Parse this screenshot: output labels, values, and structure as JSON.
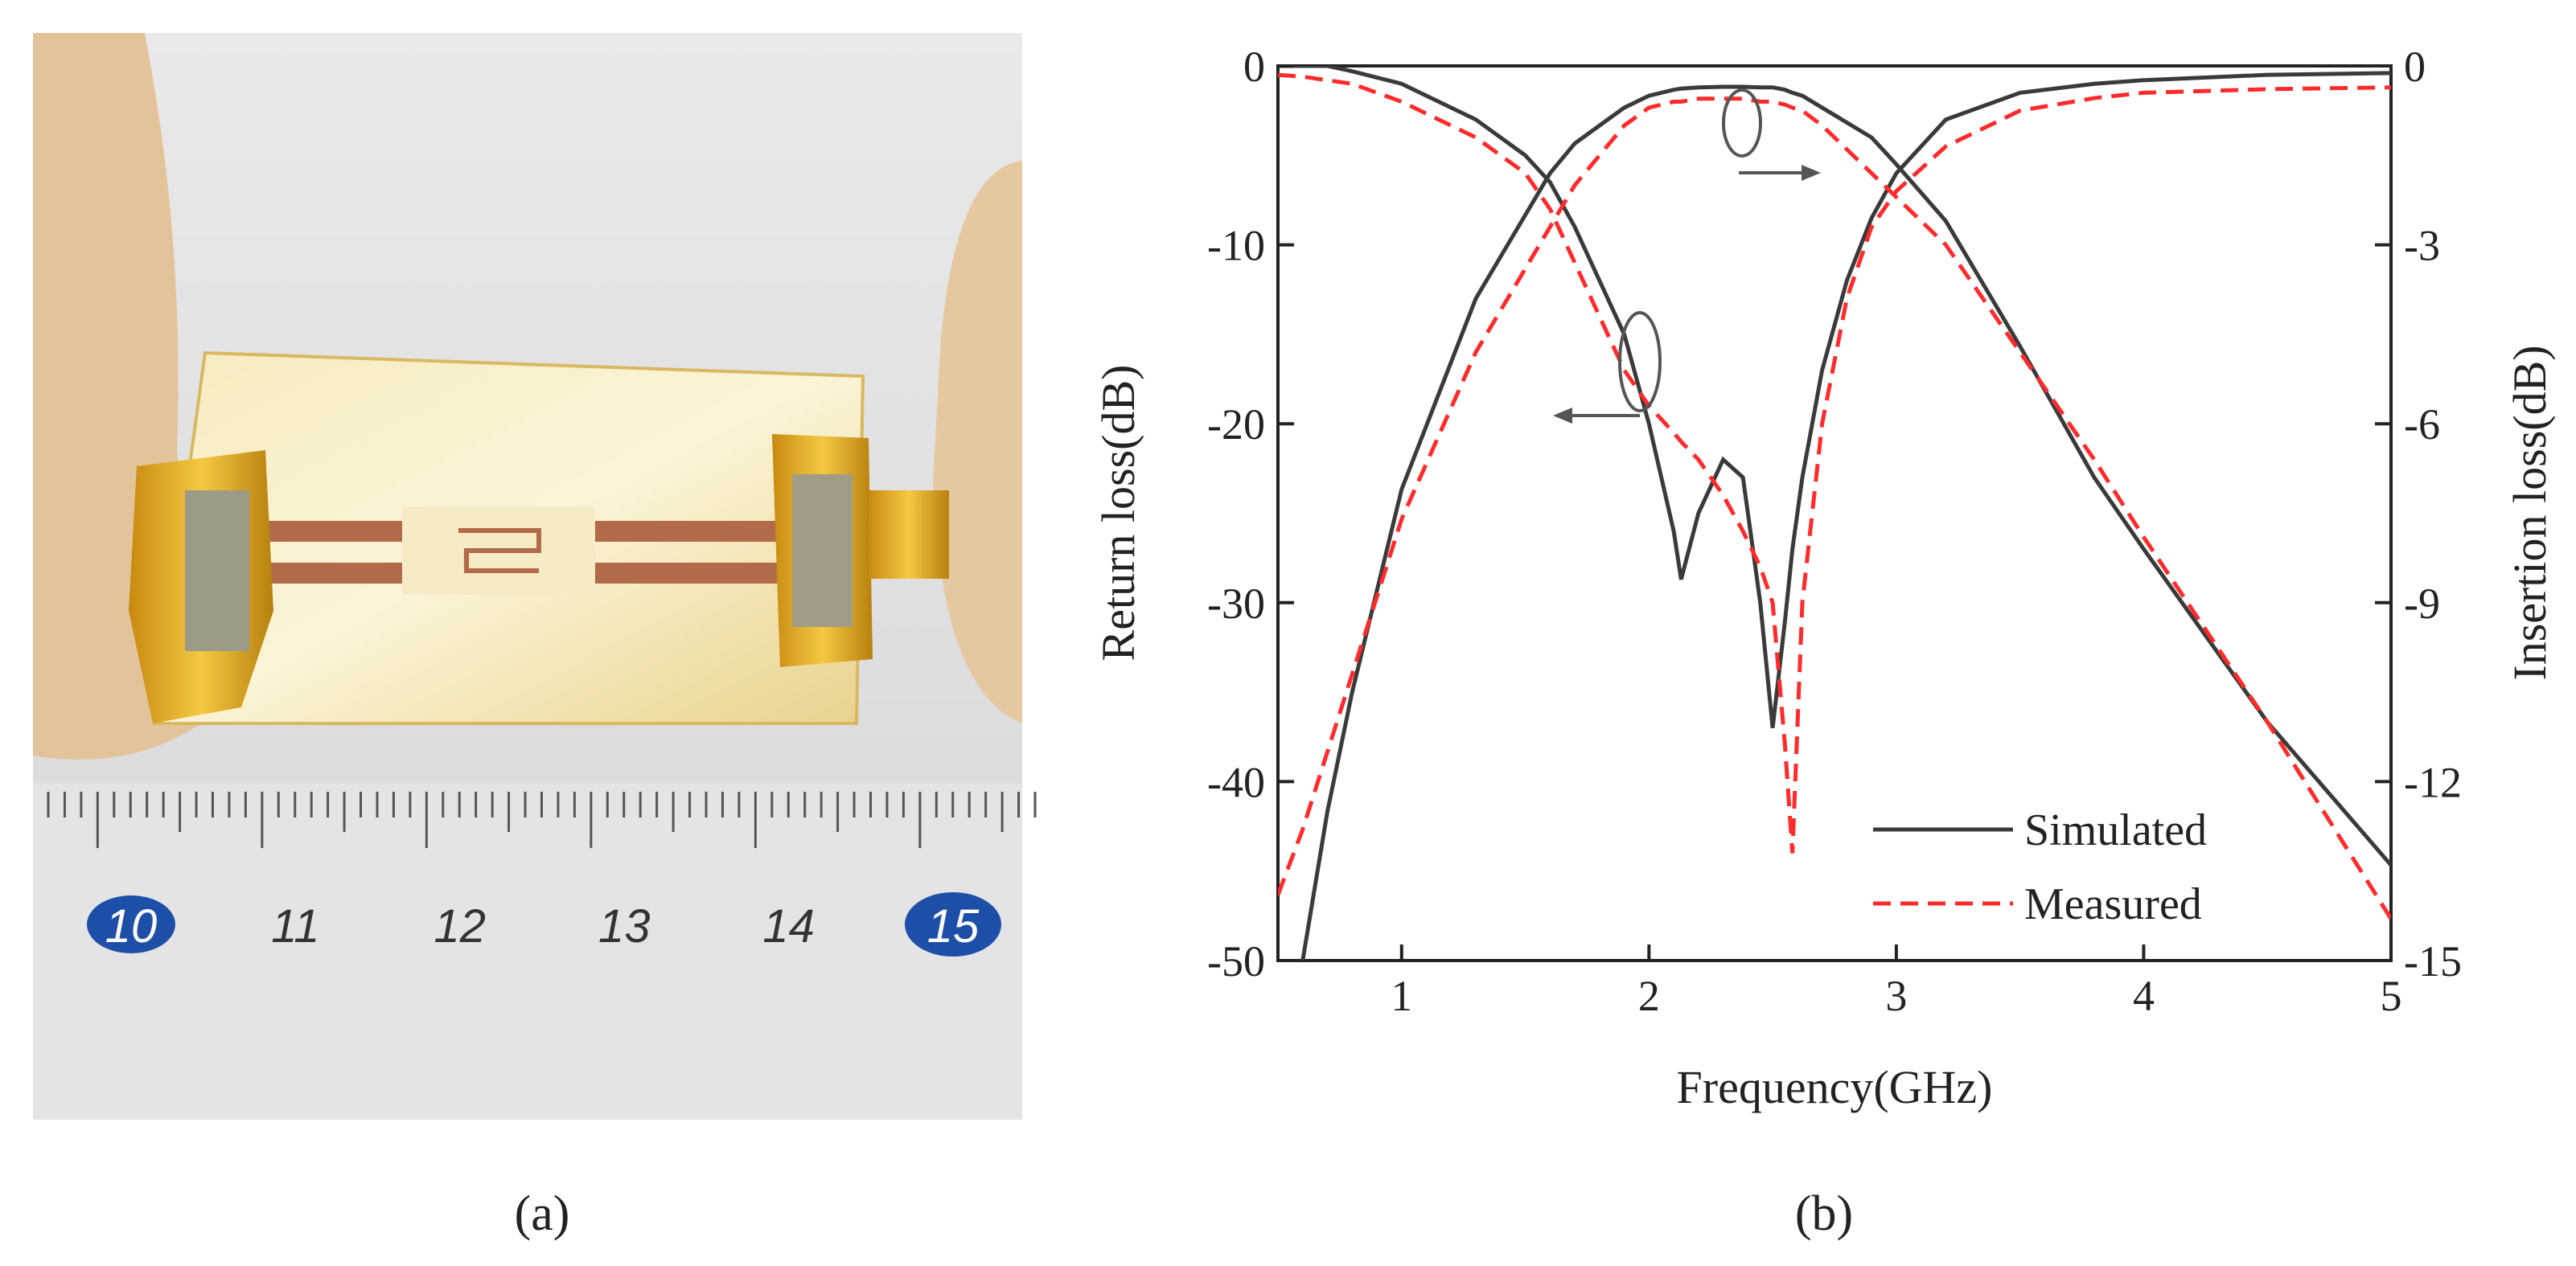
{
  "photo": {
    "ruler_labels": [
      "10",
      "11",
      "12",
      "13",
      "14",
      "15"
    ]
  },
  "captions": [
    "(a)",
    "(b)"
  ],
  "chart_data": {
    "type": "line",
    "xlabel": "Frequency(GHz)",
    "ylabel": "Return loss(dB)",
    "y2label": "Insertion loss(dB)",
    "xlim": [
      0.5,
      5
    ],
    "xticks": [
      1,
      2,
      3,
      4,
      5
    ],
    "ylim": [
      -50,
      0
    ],
    "yticks": [
      0,
      -10,
      -20,
      -30,
      -40,
      -50
    ],
    "y2lim": [
      -15,
      0
    ],
    "y2ticks": [
      0,
      -3,
      -6,
      -9,
      -12,
      -15
    ],
    "legend": "lower right",
    "x": [
      0.5,
      0.6,
      0.7,
      0.8,
      1.0,
      1.3,
      1.5,
      1.6,
      1.7,
      1.8,
      1.9,
      2.0,
      2.1,
      2.13,
      2.2,
      2.3,
      2.38,
      2.45,
      2.5,
      2.55,
      2.58,
      2.62,
      2.7,
      2.8,
      2.9,
      3.0,
      3.2,
      3.5,
      3.8,
      4.0,
      4.5,
      5.0
    ],
    "series": [
      {
        "name": "Simulated",
        "color": "#3a3a3a",
        "line_style": "solid",
        "values": [
          0,
          0,
          0,
          -0.3,
          -1,
          -3,
          -5,
          -6.5,
          -9,
          -12,
          -15,
          -20,
          -26,
          -28.7,
          -25,
          -22,
          -23,
          -30,
          -37,
          -31,
          -27,
          -23,
          -17,
          -12,
          -8.5,
          -6,
          -3,
          -1.5,
          -1,
          -0.8,
          -0.5,
          -0.4
        ],
        "values_y2": [
          null,
          -15,
          -12.5,
          -10.5,
          -7.1,
          -3.9,
          -2.5,
          -1.8,
          -1.3,
          -1.0,
          -0.7,
          -0.5,
          -0.4,
          -0.38,
          -0.36,
          -0.35,
          -0.35,
          -0.36,
          -0.36,
          -0.4,
          -0.45,
          -0.5,
          -0.7,
          -0.95,
          -1.2,
          -1.65,
          -2.6,
          -4.7,
          -6.9,
          -8.1,
          -11,
          -13.4
        ]
      },
      {
        "name": "Measured",
        "color": "#ff2a2a",
        "line_style": "dashed",
        "values": [
          -0.5,
          -0.6,
          -0.8,
          -1,
          -2,
          -4,
          -6,
          -8,
          -11,
          -14,
          -17,
          -19,
          -20.5,
          -21,
          -22,
          -24,
          -26,
          -28,
          -30,
          -38,
          -44,
          -30,
          -20,
          -13,
          -9,
          -7,
          -4.5,
          -2.5,
          -1.8,
          -1.5,
          -1.3,
          -1.2
        ],
        "values_y2": [
          -13.9,
          -12.8,
          -11.5,
          -10.2,
          -7.6,
          -4.8,
          -3.4,
          -2.7,
          -2.0,
          -1.5,
          -1.0,
          -0.7,
          -0.6,
          -0.6,
          -0.55,
          -0.55,
          -0.55,
          -0.6,
          -0.6,
          -0.65,
          -0.7,
          -0.75,
          -1.0,
          -1.4,
          -1.8,
          -2.2,
          -3.0,
          -4.8,
          -6.6,
          -7.9,
          -11,
          -14.3
        ]
      }
    ]
  }
}
